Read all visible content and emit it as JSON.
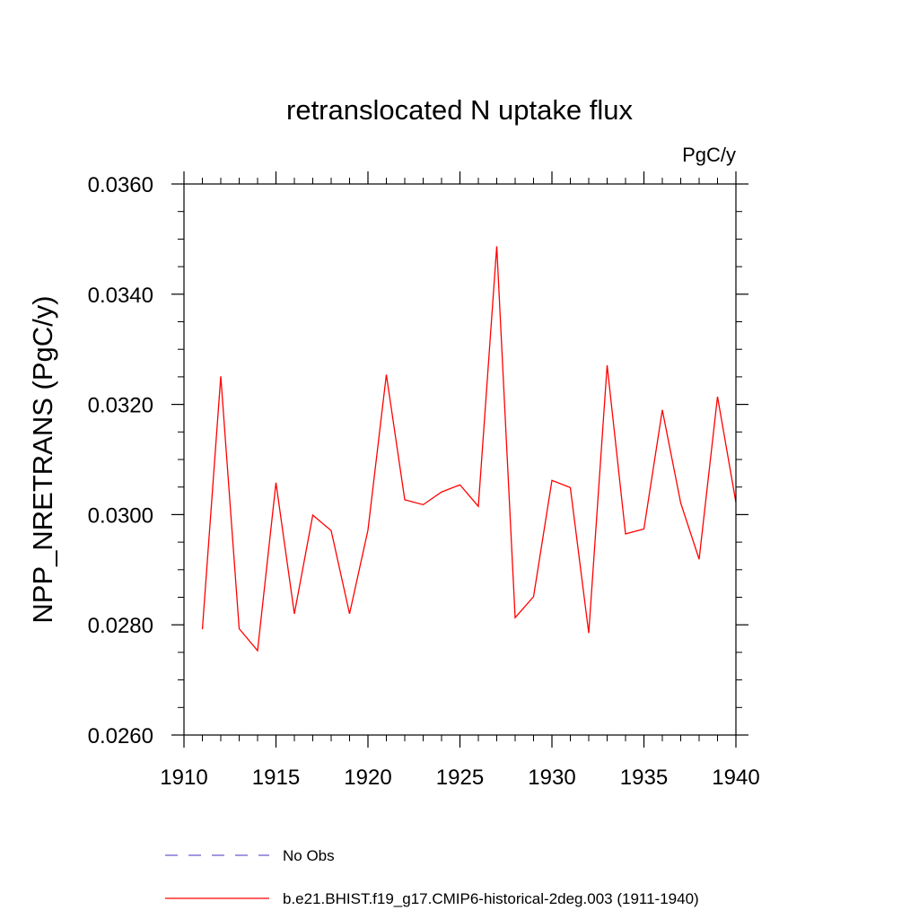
{
  "chart_data": {
    "type": "line",
    "title": "retranslocated N uptake flux",
    "units_label": "PgC/y",
    "ylabel": "NPP_NRETRANS  (PgC/y)",
    "xlabel": "",
    "xlim": [
      1910,
      1940
    ],
    "ylim": [
      0.026,
      0.036
    ],
    "x_ticks": [
      1910,
      1915,
      1920,
      1925,
      1930,
      1935,
      1940
    ],
    "x_tick_labels": [
      "1910",
      "1915",
      "1920",
      "1925",
      "1930",
      "1935",
      "1940"
    ],
    "y_ticks": [
      0.026,
      0.028,
      0.03,
      0.032,
      0.034,
      0.036
    ],
    "y_tick_labels": [
      "0.0260",
      "0.0280",
      "0.0300",
      "0.0320",
      "0.0340",
      "0.0360"
    ],
    "grid": false,
    "legend_position": "bottom",
    "series": [
      {
        "name": "No Obs",
        "color": "#6a5acd",
        "dash": "dashed",
        "x": [],
        "y": []
      },
      {
        "name": "b.e21.BHIST.f19_g17.CMIP6-historical-2deg.003 (1911-1940)",
        "color": "#ff0000",
        "dash": "solid",
        "x": [
          1911,
          1912,
          1913,
          1914,
          1915,
          1916,
          1917,
          1918,
          1919,
          1920,
          1921,
          1922,
          1923,
          1924,
          1925,
          1926,
          1927,
          1928,
          1929,
          1930,
          1931,
          1932,
          1933,
          1934,
          1935,
          1936,
          1937,
          1938,
          1939,
          1940
        ],
        "y": [
          0.02792,
          0.03251,
          0.02793,
          0.02753,
          0.03058,
          0.0282,
          0.02999,
          0.02971,
          0.0282,
          0.02972,
          0.03254,
          0.03027,
          0.03018,
          0.03041,
          0.03054,
          0.03015,
          0.03487,
          0.02813,
          0.02851,
          0.03062,
          0.03049,
          0.02785,
          0.03271,
          0.02965,
          0.02974,
          0.0319,
          0.03021,
          0.02919,
          0.03214,
          0.03022
        ]
      }
    ]
  }
}
